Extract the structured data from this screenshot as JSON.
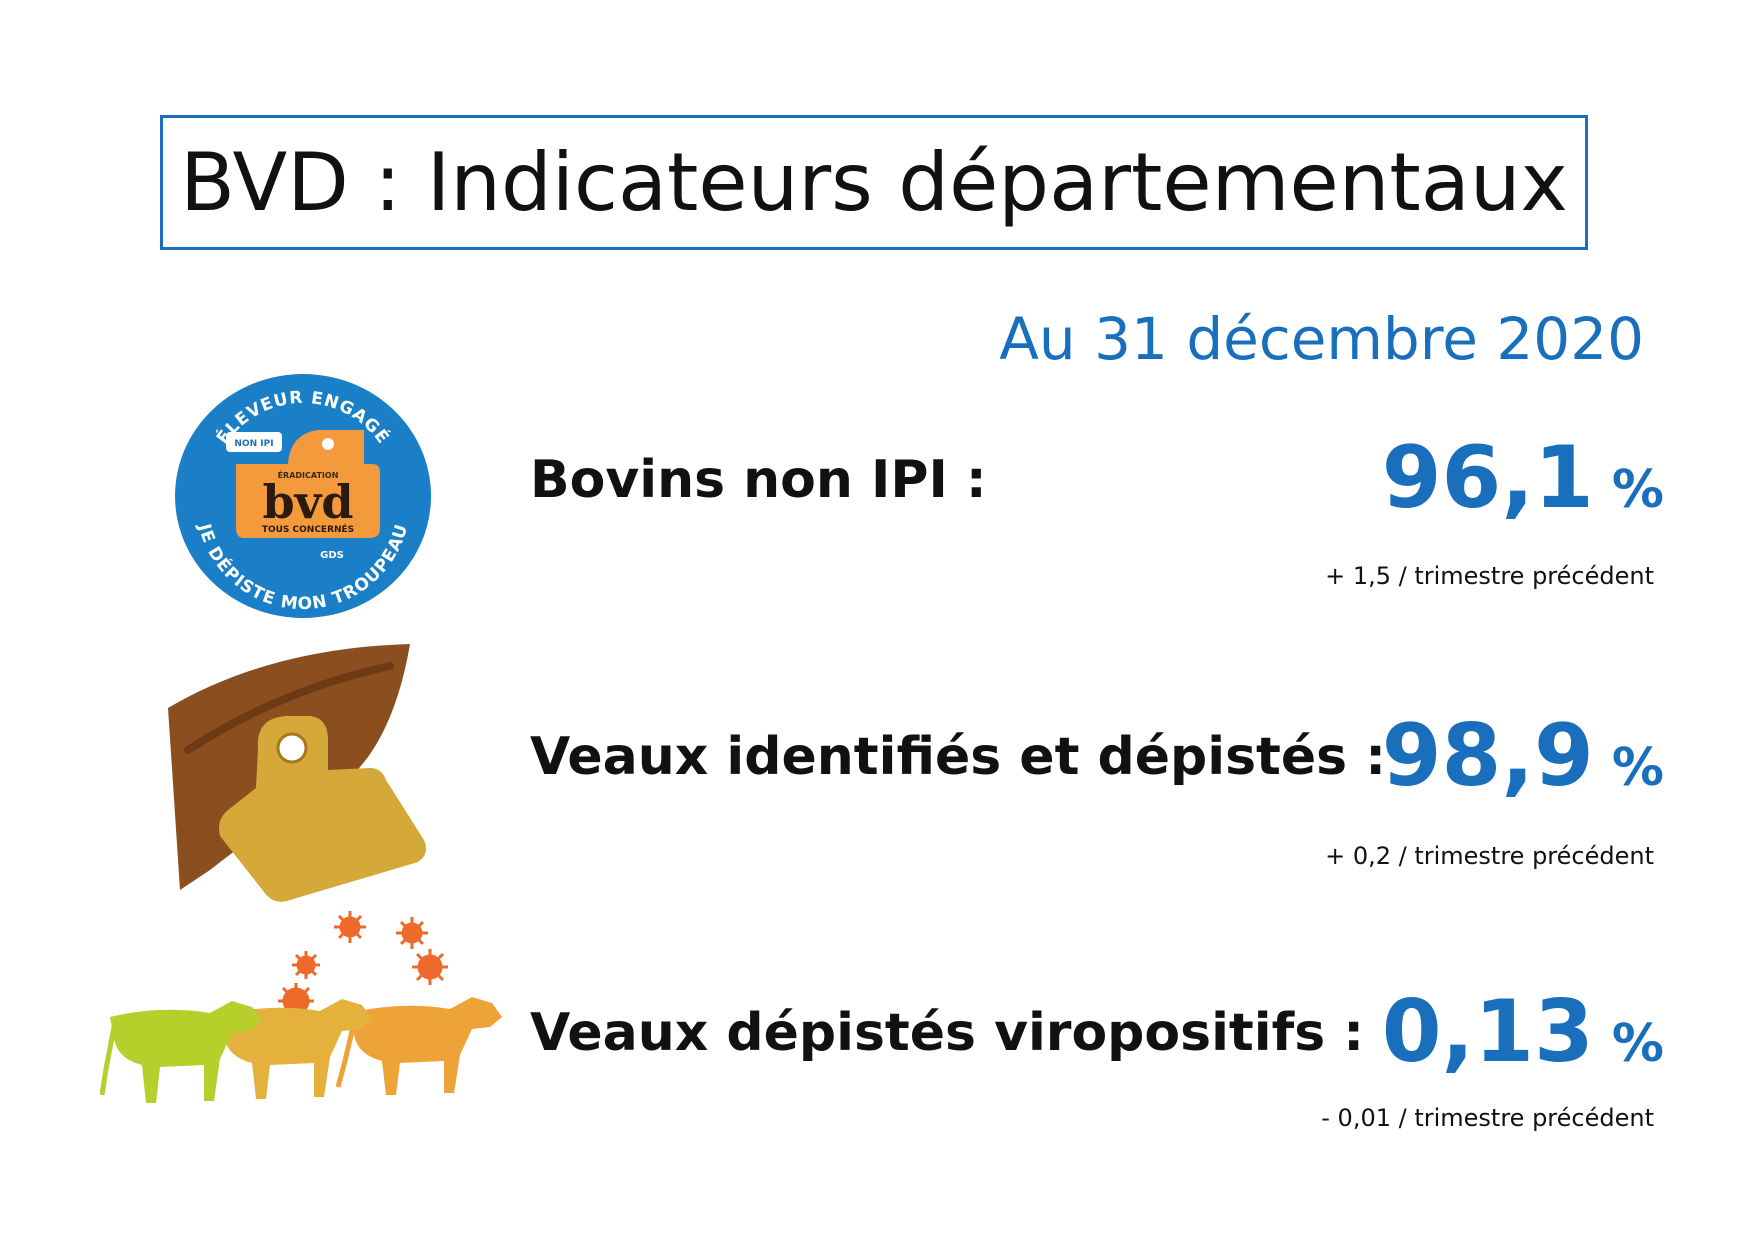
{
  "title": "BVD : Indicateurs départementaux",
  "date": "Au 31 décembre 2020",
  "badge": {
    "top_text": "ÉLEVEUR ENGAGÉ",
    "bottom_text": "JE DÉPISTE MON TROUPEAU",
    "tag_label": "NON IPI",
    "eradication": "ÉRADICATION",
    "brand": "bvd",
    "tagline": "TOUS CONCERNÉS",
    "org": "GDS",
    "colors": {
      "circle": "#1a7fc6",
      "tag": "#f39a3d"
    }
  },
  "indicators": [
    {
      "label": "Bovins non IPI :",
      "value": "96,1",
      "unit": "%",
      "change": "+ 1,5 / trimestre précédent"
    },
    {
      "label": "Veaux identifiés et dépistés :",
      "value": "98,9",
      "unit": "%",
      "change": "+ 0,2 / trimestre précédent"
    },
    {
      "label": "Veaux dépistés viropositifs :",
      "value": "0,13",
      "unit": "%",
      "change": "- 0,01 / trimestre précédent"
    }
  ],
  "colors": {
    "accent": "#1a6fbd",
    "ear": "#8b4f1f",
    "ear_tag": "#d4a93a",
    "calf_green": "#b6cf2a",
    "calf_yellow": "#e4b23c",
    "calf_orange": "#eea338",
    "virus": "#ee6a2a"
  }
}
